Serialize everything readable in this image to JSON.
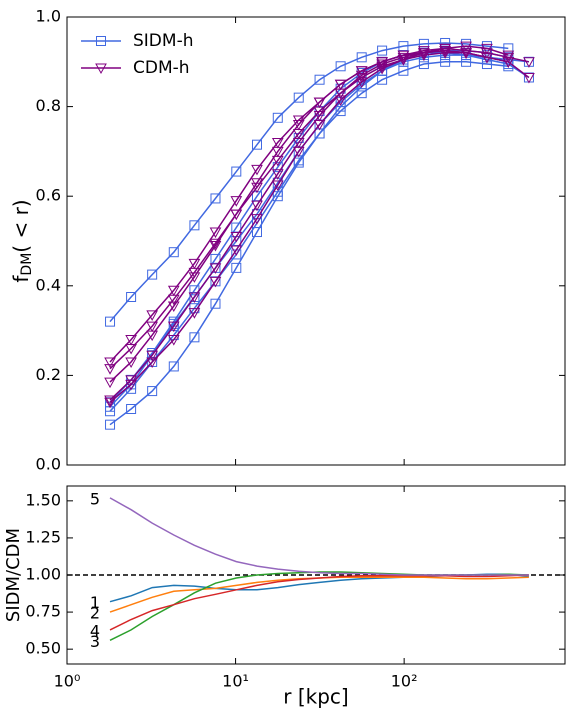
{
  "chart_data": [
    {
      "type": "line",
      "ylabel": [
        "f",
        "DM",
        "( < r)"
      ],
      "xscale": "log",
      "xlim": [
        1,
        900
      ],
      "xticks": [
        {
          "value": 1,
          "label": "10⁰"
        },
        {
          "value": 10,
          "label": "10¹"
        },
        {
          "value": 100,
          "label": "10²"
        }
      ],
      "ylim": [
        0,
        1
      ],
      "yticks": [
        {
          "value": 0,
          "label": "0.0"
        },
        0.2,
        0.4,
        0.6,
        0.8,
        {
          "value": 1,
          "label": "1.0"
        }
      ],
      "legend": "upper left",
      "x": [
        1.8,
        2.4,
        3.2,
        4.3,
        5.7,
        7.6,
        10.1,
        13.4,
        17.8,
        23.7,
        31.5,
        42,
        56,
        74,
        99,
        131,
        175,
        233,
        310,
        415,
        550
      ],
      "series": [
        {
          "name": "SIDM-h",
          "color": "#4169e1",
          "marker": "square",
          "curves": [
            [
              0.32,
              0.375,
              0.425,
              0.475,
              0.535,
              0.595,
              0.655,
              0.715,
              0.775,
              0.82,
              0.86,
              0.89,
              0.91,
              0.925,
              0.935,
              0.94,
              0.942,
              0.94,
              0.935,
              0.93,
              null
            ],
            [
              0.13,
              0.18,
              0.245,
              0.315,
              0.375,
              0.44,
              0.5,
              0.56,
              0.63,
              0.7,
              0.76,
              0.81,
              0.85,
              0.88,
              0.9,
              0.91,
              0.915,
              0.915,
              0.91,
              0.905,
              0.9
            ],
            [
              0.12,
              0.17,
              0.23,
              0.29,
              0.35,
              0.41,
              0.47,
              0.54,
              0.61,
              0.68,
              0.74,
              0.79,
              0.83,
              0.86,
              0.88,
              0.895,
              0.9,
              0.9,
              0.895,
              0.89,
              null
            ],
            [
              0.09,
              0.125,
              0.165,
              0.22,
              0.285,
              0.36,
              0.44,
              0.52,
              0.6,
              0.675,
              0.74,
              0.8,
              0.845,
              0.88,
              0.905,
              0.92,
              0.925,
              0.925,
              0.92,
              0.91,
              null
            ],
            [
              0.14,
              0.19,
              0.25,
              0.32,
              0.39,
              0.46,
              0.53,
              0.6,
              0.665,
              0.73,
              0.79,
              0.84,
              0.875,
              0.9,
              0.915,
              0.92,
              0.92,
              0.915,
              0.905,
              0.895,
              0.865
            ]
          ]
        },
        {
          "name": "CDM-h",
          "color": "#800080",
          "marker": "triangle_down",
          "curves": [
            [
              0.23,
              0.28,
              0.335,
              0.39,
              0.45,
              0.52,
              0.59,
              0.66,
              0.72,
              0.77,
              0.81,
              0.85,
              0.88,
              0.9,
              0.915,
              0.925,
              0.93,
              0.925,
              0.92,
              0.91,
              0.9
            ],
            [
              0.215,
              0.26,
              0.31,
              0.37,
              0.43,
              0.495,
              0.56,
              0.62,
              0.68,
              0.74,
              0.79,
              0.83,
              0.865,
              0.89,
              0.905,
              0.915,
              0.92,
              0.92,
              0.91,
              0.9,
              null
            ],
            [
              0.185,
              0.23,
              0.29,
              0.355,
              0.42,
              0.49,
              0.56,
              0.63,
              0.7,
              0.76,
              0.81,
              0.85,
              0.88,
              0.9,
              0.915,
              0.92,
              0.925,
              0.92,
              0.91,
              0.9,
              0.865
            ],
            [
              0.145,
              0.19,
              0.245,
              0.31,
              0.375,
              0.44,
              0.51,
              0.58,
              0.65,
              0.72,
              0.78,
              0.83,
              0.87,
              0.895,
              0.91,
              0.92,
              0.925,
              0.92,
              0.91,
              0.9,
              null
            ],
            [
              0.14,
              0.18,
              0.23,
              0.28,
              0.34,
              0.41,
              0.48,
              0.55,
              0.625,
              0.7,
              0.76,
              0.815,
              0.855,
              0.885,
              0.905,
              0.92,
              0.93,
              0.935,
              0.93,
              0.915,
              null
            ]
          ]
        }
      ]
    },
    {
      "type": "line",
      "xlabel": "r [kpc]",
      "ylabel": "SIDM/CDM",
      "xscale": "log",
      "xlim": [
        1,
        900
      ],
      "xticks": [
        {
          "value": 1,
          "label": "10⁰"
        },
        {
          "value": 10,
          "label": "10¹"
        },
        {
          "value": 100,
          "label": "10²"
        }
      ],
      "ylim": [
        0.4,
        1.6
      ],
      "yticks": [
        {
          "value": 0.5,
          "label": "0.50"
        },
        0.75,
        {
          "value": 1,
          "label": "1.00"
        },
        1.25,
        {
          "value": 1.5,
          "label": "1.50"
        }
      ],
      "hline": 1,
      "x": [
        1.8,
        2.4,
        3.2,
        4.3,
        5.7,
        7.6,
        10.1,
        13.4,
        17.8,
        23.7,
        31.5,
        42,
        56,
        74,
        99,
        131,
        175,
        233,
        310,
        415,
        550
      ],
      "series": [
        {
          "name": "1",
          "color": "#1f77b4",
          "values": [
            0.82,
            0.86,
            0.915,
            0.93,
            0.925,
            0.91,
            0.9,
            0.9,
            0.915,
            0.935,
            0.95,
            0.965,
            0.975,
            0.98,
            0.985,
            0.99,
            0.995,
            1.0,
            1.005,
            1.005,
            0.99
          ]
        },
        {
          "name": "2",
          "color": "#ff7f0e",
          "values": [
            0.75,
            0.8,
            0.85,
            0.89,
            0.9,
            0.91,
            0.93,
            0.95,
            0.965,
            0.975,
            0.98,
            0.985,
            0.985,
            0.985,
            0.985,
            0.985,
            0.98,
            0.975,
            0.975,
            0.98,
            0.985
          ]
        },
        {
          "name": "3",
          "color": "#2ca02c",
          "values": [
            0.56,
            0.63,
            0.72,
            0.8,
            0.88,
            0.945,
            0.98,
            1.0,
            1.01,
            1.015,
            1.02,
            1.02,
            1.015,
            1.01,
            1.005,
            1.0,
            1.0,
            1.0,
            1.0,
            1.005,
            1.0
          ]
        },
        {
          "name": "4",
          "color": "#d62728",
          "values": [
            0.63,
            0.7,
            0.76,
            0.8,
            0.84,
            0.87,
            0.9,
            0.93,
            0.955,
            0.97,
            0.98,
            0.99,
            0.995,
            0.995,
            0.995,
            0.995,
            0.995,
            0.99,
            0.99,
            0.995,
            1.0
          ]
        },
        {
          "name": "5",
          "color": "#9467bd",
          "values": [
            1.52,
            1.44,
            1.35,
            1.27,
            1.2,
            1.14,
            1.09,
            1.06,
            1.04,
            1.025,
            1.015,
            1.01,
            1.01,
            1.005,
            1.0,
            1.0,
            1.0,
            1.0,
            1.0,
            1.0,
            1.0
          ]
        }
      ]
    }
  ]
}
